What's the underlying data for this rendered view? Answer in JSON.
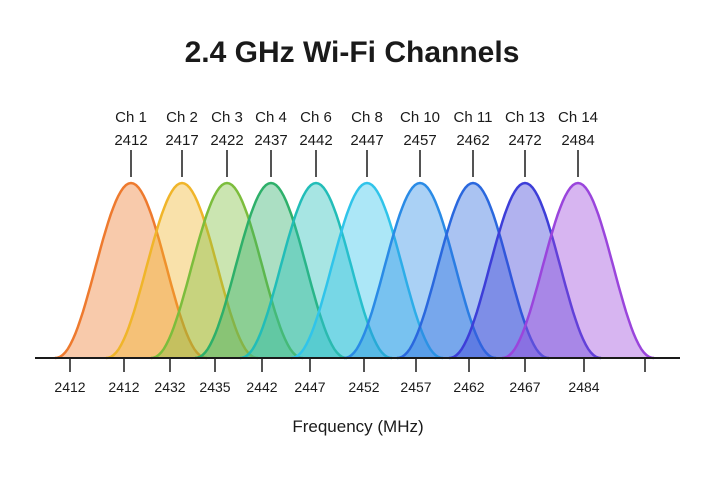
{
  "title": "2.4 GHz Wi-Fi Channels",
  "channels": [
    {
      "name": "Ch 1",
      "frequency": "2412",
      "color": "#ee7a2e"
    },
    {
      "name": "Ch 2",
      "frequency": "2417",
      "color": "#f0b52a"
    },
    {
      "name": "Ch 3",
      "frequency": "2422",
      "color": "#7cbd3c"
    },
    {
      "name": "Ch 4",
      "frequency": "2437",
      "color": "#2eb06a"
    },
    {
      "name": "Ch 6",
      "frequency": "2442",
      "color": "#22bdb8"
    },
    {
      "name": "Ch 8",
      "frequency": "2447",
      "color": "#30c4ea"
    },
    {
      "name": "Ch 10",
      "frequency": "2457",
      "color": "#2a8be6"
    },
    {
      "name": "Ch 11",
      "frequency": "2462",
      "color": "#2a68de"
    },
    {
      "name": "Ch 13",
      "frequency": "2472",
      "color": "#3d3ed8"
    },
    {
      "name": "Ch 14",
      "frequency": "2484",
      "color": "#9a45dc"
    }
  ],
  "axis_labels": [
    "2412",
    "2412",
    "2432",
    "2435",
    "2442",
    "2447",
    "2452",
    "2457",
    "2462",
    "2467",
    "2484"
  ],
  "axis_title": "Frequency (MHz)"
}
